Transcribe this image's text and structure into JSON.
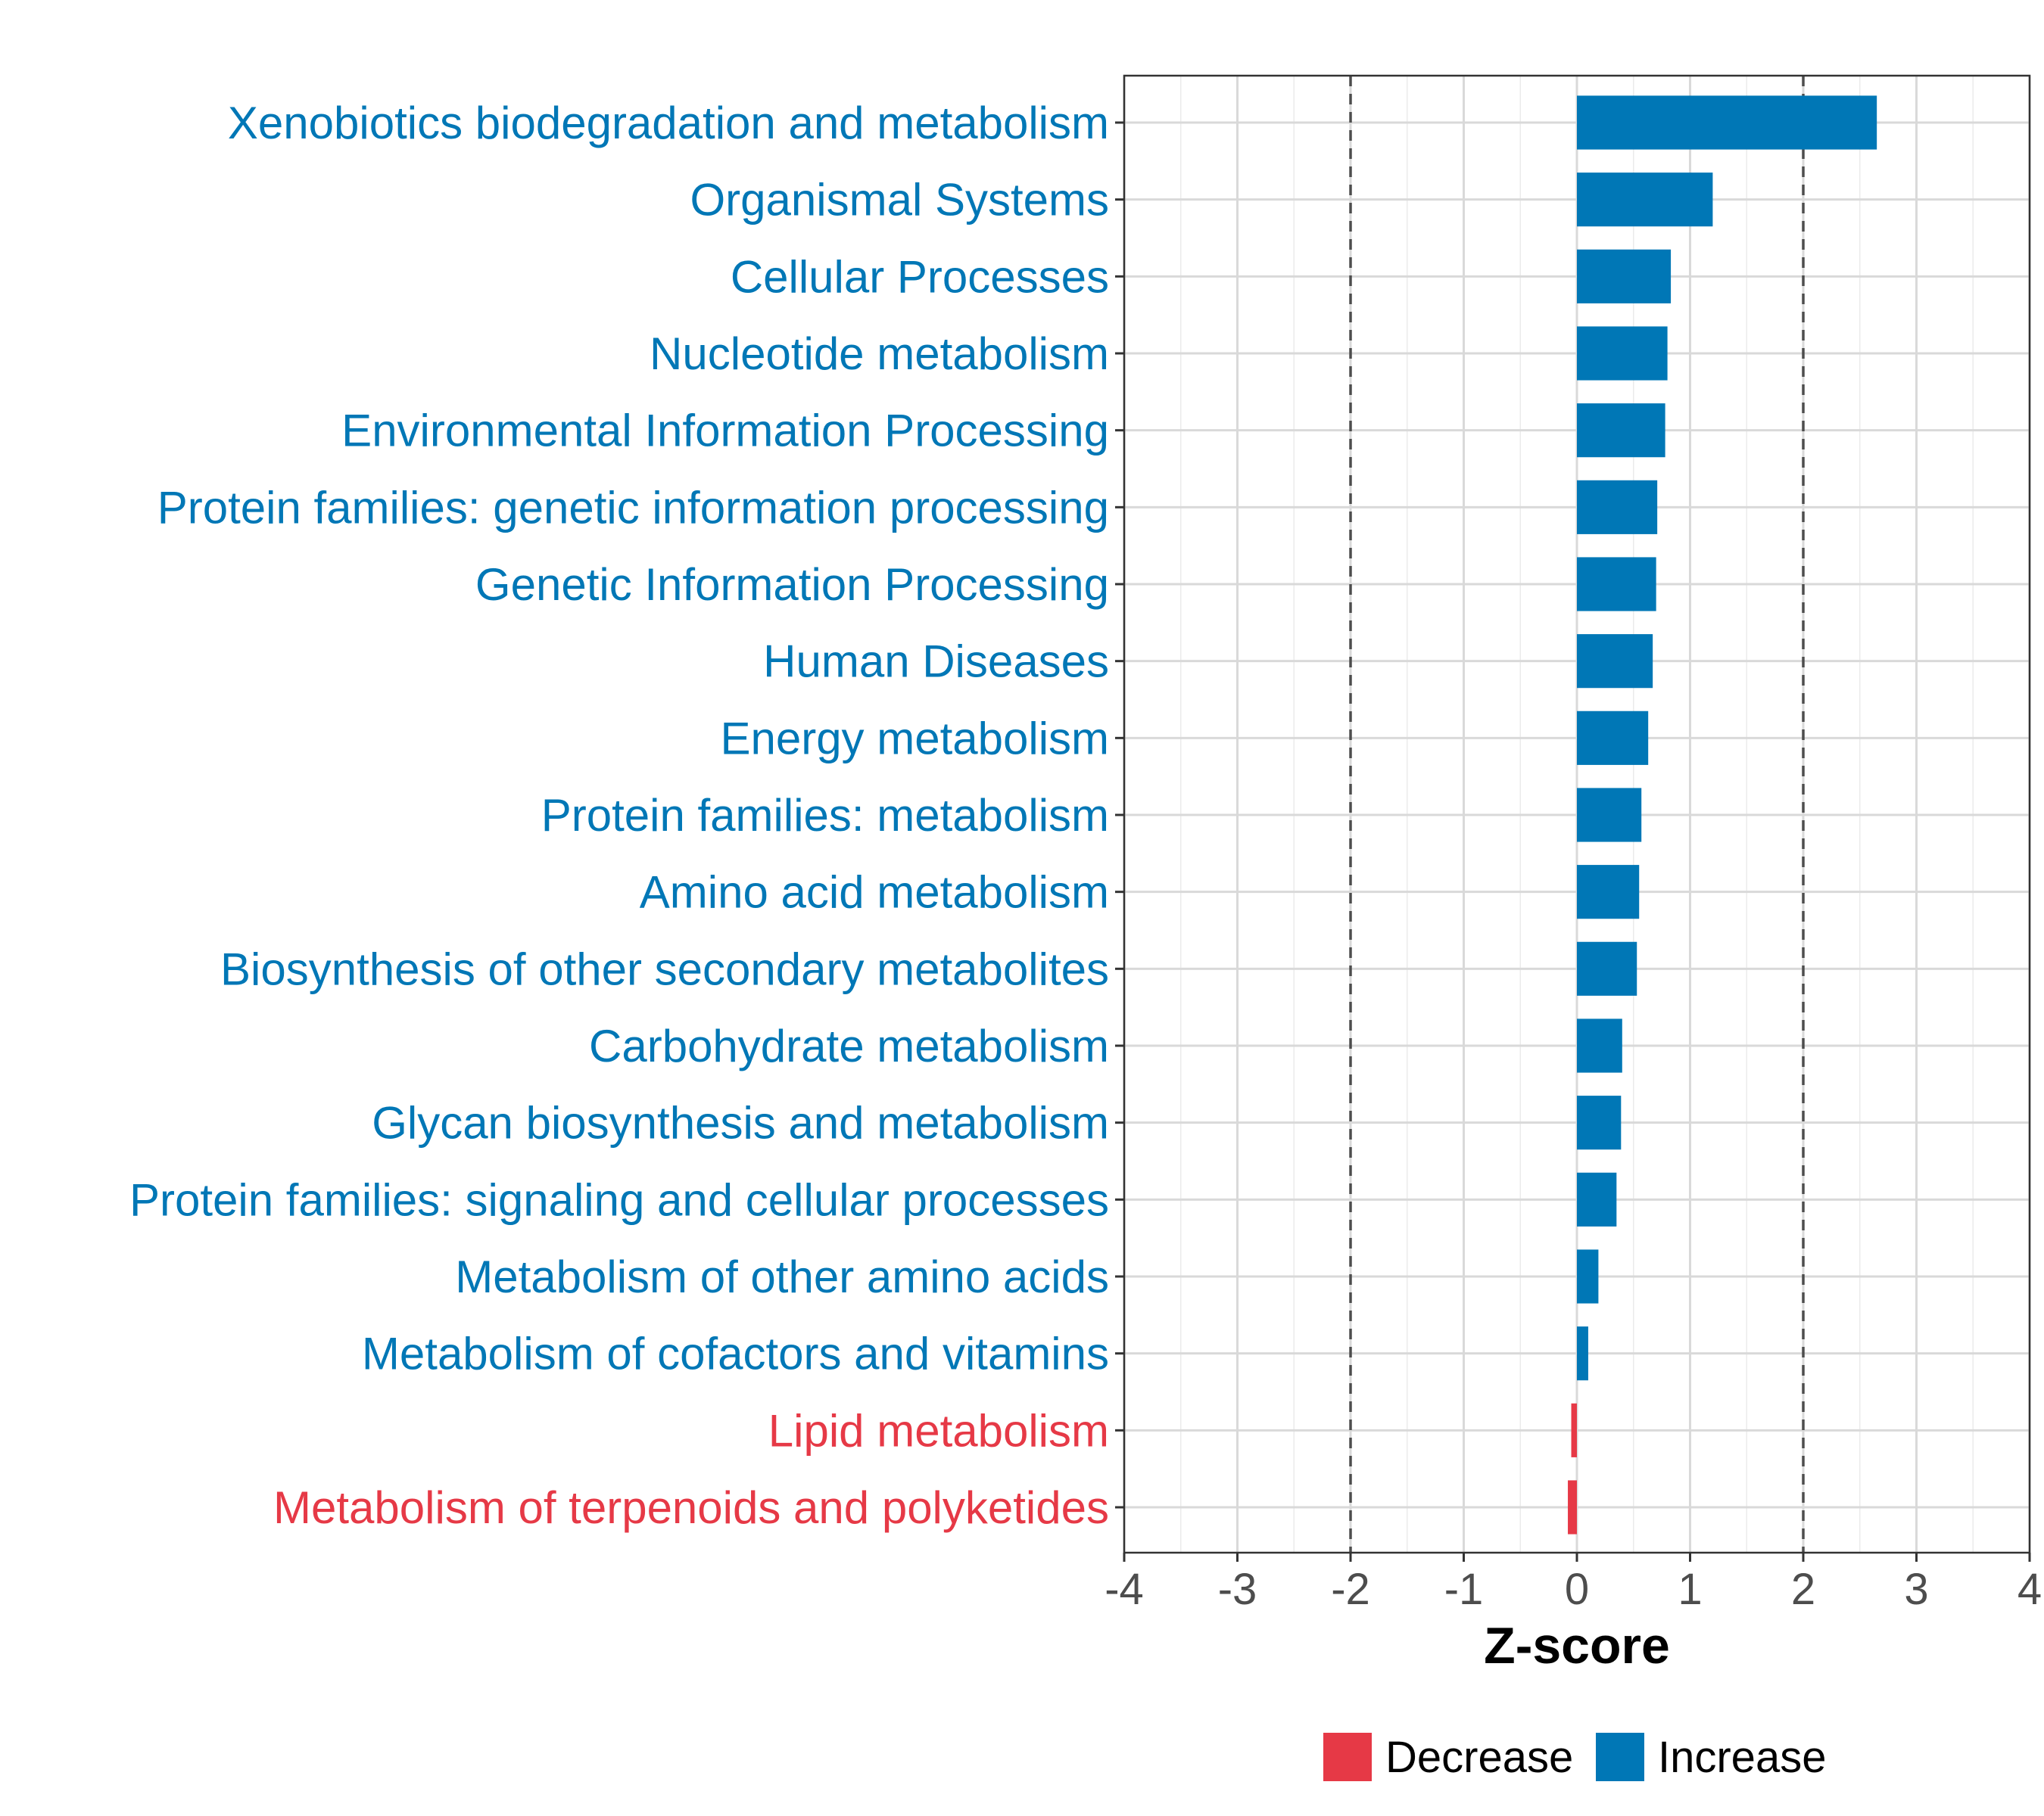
{
  "chart_data": {
    "type": "bar",
    "orientation": "horizontal",
    "categories": [
      "Xenobiotics biodegradation and metabolism",
      "Organismal Systems",
      "Cellular Processes",
      "Nucleotide metabolism",
      "Environmental Information Processing",
      "Protein families: genetic information processing",
      "Genetic Information Processing",
      "Human Diseases",
      "Energy metabolism",
      "Protein families: metabolism",
      "Amino acid metabolism",
      "Biosynthesis of other secondary metabolites",
      "Carbohydrate metabolism",
      "Glycan biosynthesis and metabolism",
      "Protein families: signaling and cellular processes",
      "Metabolism of other amino acids",
      "Metabolism of cofactors and vitamins",
      "Lipid metabolism",
      "Metabolism of terpenoids and polyketides"
    ],
    "values": [
      2.65,
      1.2,
      0.83,
      0.8,
      0.78,
      0.71,
      0.7,
      0.67,
      0.63,
      0.57,
      0.55,
      0.53,
      0.4,
      0.39,
      0.35,
      0.19,
      0.1,
      -0.05,
      -0.08
    ],
    "groups": [
      "Increase",
      "Increase",
      "Increase",
      "Increase",
      "Increase",
      "Increase",
      "Increase",
      "Increase",
      "Increase",
      "Increase",
      "Increase",
      "Increase",
      "Increase",
      "Increase",
      "Increase",
      "Increase",
      "Increase",
      "Decrease",
      "Decrease"
    ],
    "xlabel": "Z-score",
    "xlim": [
      -4,
      4
    ],
    "xticks": [
      -4,
      -3,
      -2,
      -1,
      0,
      1,
      2,
      3,
      4
    ],
    "xtick_labels": [
      "-4",
      "-3",
      "-2",
      "-1",
      "0",
      "1",
      "2",
      "3",
      "4"
    ],
    "threshold_lines": [
      -2,
      2
    ],
    "grid": true,
    "legend": {
      "placement": "bottom",
      "entries": [
        {
          "name": "Decrease",
          "color": "#e63946"
        },
        {
          "name": "Increase",
          "color": "#0077b6"
        }
      ]
    },
    "colors": {
      "Decrease": "#e63946",
      "Increase": "#0077b6"
    }
  }
}
